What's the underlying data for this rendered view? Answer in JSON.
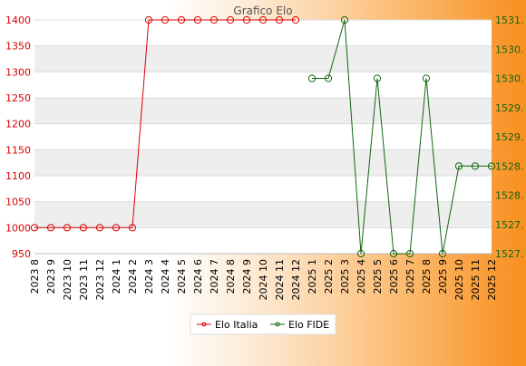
{
  "chart_data": {
    "type": "line",
    "title": "Grafico Elo",
    "categories": [
      "2023 8",
      "2023 9",
      "2023 10",
      "2023 11",
      "2023 12",
      "2024 1",
      "2024 2",
      "2024 3",
      "2024 4",
      "2024 5",
      "2024 6",
      "2024 7",
      "2024 8",
      "2024 9",
      "2024 10",
      "2024 11",
      "2024 12",
      "2025 1",
      "2025 2",
      "2025 3",
      "2025 4",
      "2025 5",
      "2025 6",
      "2025 7",
      "2025 8",
      "2025 9",
      "2025 10",
      "2025 11",
      "2025 12"
    ],
    "y_left": {
      "min": 950,
      "max": 1400,
      "ticks": [
        "950",
        "1000",
        "1050",
        "1100",
        "1150",
        "1200",
        "1250",
        "1300",
        "1350",
        "1400"
      ]
    },
    "y_right": {
      "min": 1527,
      "max": 1531,
      "ticks": [
        "1527.",
        "1527.",
        "1528.",
        "1528.",
        "1529.",
        "1529.",
        "1530.",
        "1530.",
        "1531."
      ]
    },
    "grid": true,
    "legend_position": "bottom-center",
    "series": [
      {
        "name": "Elo Italia",
        "color": "#dd0000",
        "axis": "left",
        "values": [
          1000,
          1000,
          1000,
          1000,
          1000,
          1000,
          1000,
          1400,
          1400,
          1400,
          1400,
          1400,
          1400,
          1400,
          1400,
          1400,
          1400,
          null,
          null,
          null,
          null,
          null,
          null,
          null,
          null,
          null,
          null,
          null,
          null
        ]
      },
      {
        "name": "Elo FIDE",
        "color": "#116611",
        "axis": "right",
        "values": [
          null,
          null,
          null,
          null,
          null,
          null,
          null,
          null,
          null,
          null,
          null,
          null,
          null,
          null,
          null,
          null,
          null,
          1530,
          1530,
          1531,
          1527,
          1530,
          1527,
          1527,
          1530,
          1527,
          1528.5,
          1528.5,
          1528.5
        ]
      }
    ]
  }
}
